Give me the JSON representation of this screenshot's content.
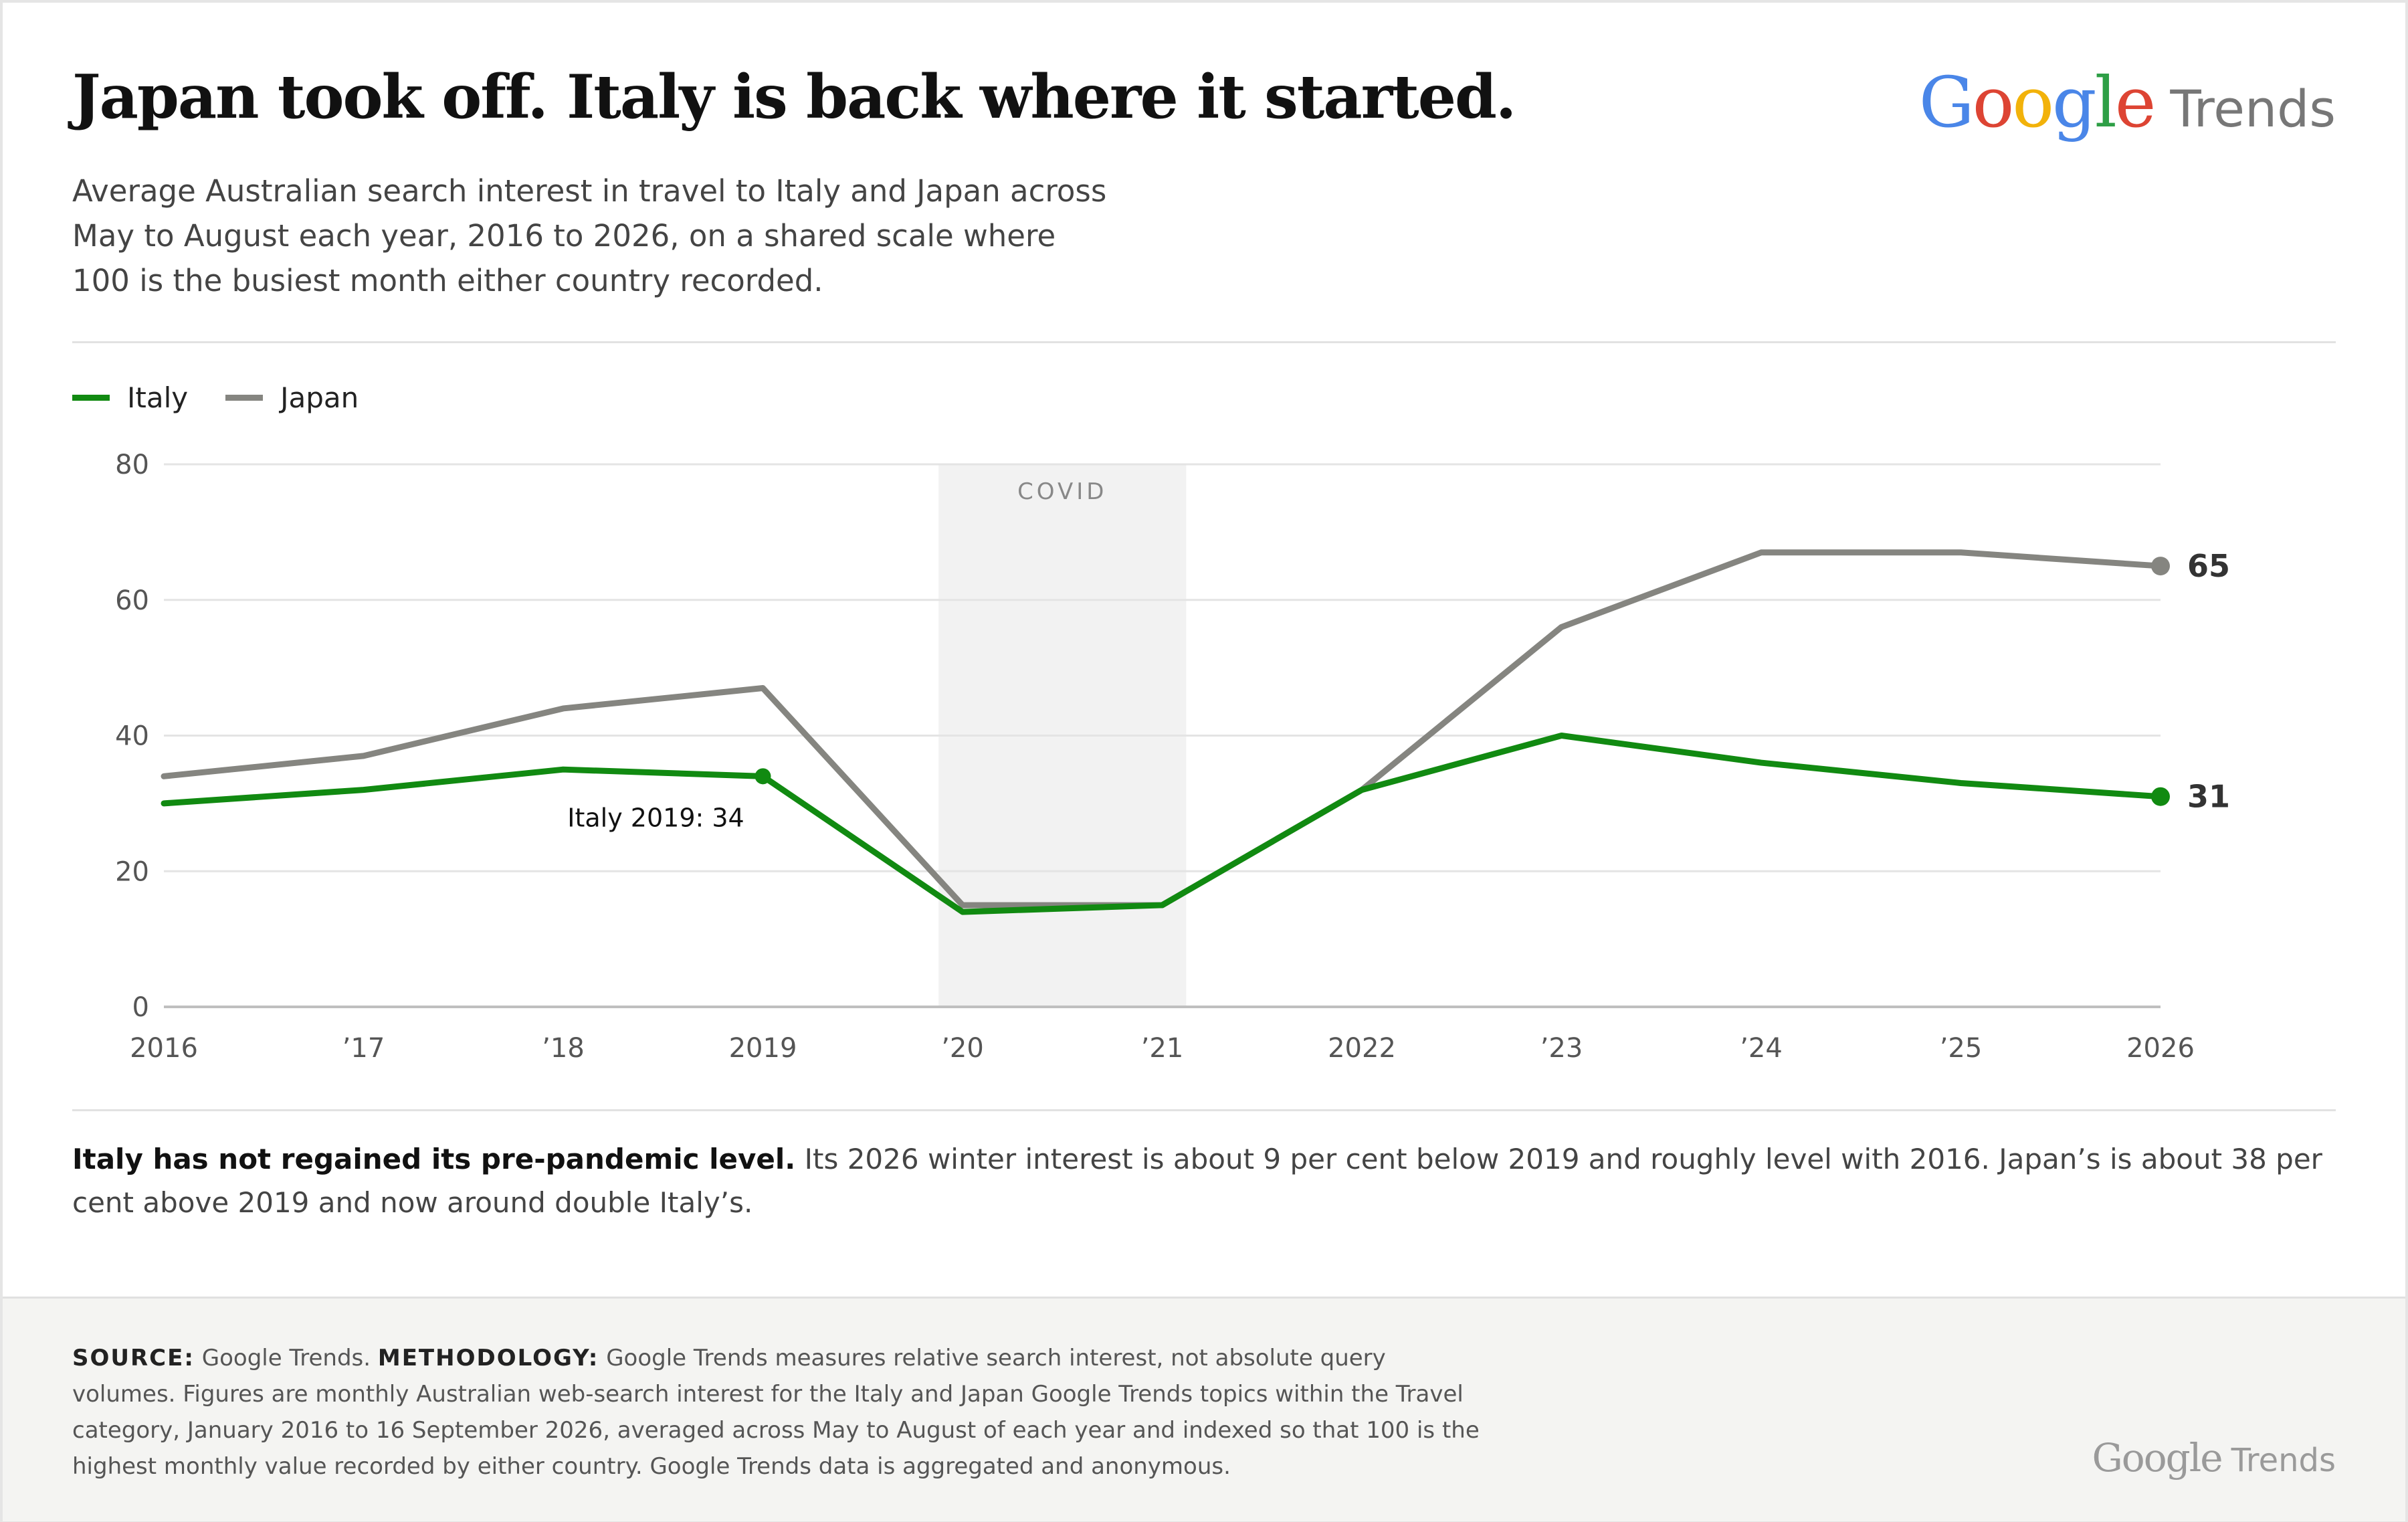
{
  "header": {
    "title": "Japan took off. Italy is back where it started.",
    "subtitle": "Average Australian search interest in travel to Italy and Japan across May to August each year, 2016 to 2026, on a shared scale where 100 is the busiest month either country recorded.",
    "logo_google": "Google",
    "logo_trends": "Trends"
  },
  "legend": [
    {
      "name": "Italy",
      "color": "#118a11"
    },
    {
      "name": "Japan",
      "color": "#858580"
    }
  ],
  "chart_data": {
    "type": "line",
    "x": [
      2016,
      2017,
      2018,
      2019,
      2020,
      2021,
      2022,
      2023,
      2024,
      2025,
      2026
    ],
    "x_tick_labels": [
      "2016",
      "’17",
      "’18",
      "2019",
      "’20",
      "’21",
      "2022",
      "’23",
      "’24",
      "’25",
      "2026"
    ],
    "ylim": [
      0,
      80
    ],
    "y_ticks": [
      0,
      20,
      40,
      60,
      80
    ],
    "grid": true,
    "legend_placement": "top-left",
    "series": [
      {
        "name": "Italy",
        "color": "#118a11",
        "values": [
          30,
          32,
          35,
          34,
          14,
          15,
          32,
          40,
          36,
          33,
          31
        ]
      },
      {
        "name": "Japan",
        "color": "#858580",
        "values": [
          34,
          37,
          44,
          47,
          15,
          15,
          32,
          56,
          67,
          67,
          65
        ]
      }
    ],
    "shaded_region": {
      "label": "COVID",
      "x_start": 2019.88,
      "x_end": 2021.12
    },
    "annotations": [
      {
        "text": "Italy 2019: 34",
        "series": "Italy",
        "x": 2019,
        "y": 34
      }
    ],
    "end_labels": [
      {
        "series": "Japan",
        "text": "65"
      },
      {
        "series": "Italy",
        "text": "31"
      }
    ]
  },
  "takeaway": {
    "bold": "Italy has not regained its pre-pandemic level.",
    "text": " Its 2026 winter interest is about 9 per cent below 2019 and roughly level with 2016. Japan’s is about 38 per cent above 2019 and now around double Italy’s."
  },
  "footer": {
    "source_label": "SOURCE:",
    "source_text": " Google Trends. ",
    "methodology_label": "METHODOLOGY:",
    "methodology_text": " Google Trends measures relative search interest, not absolute query volumes. Figures are monthly Australian web-search interest for the Italy and Japan Google Trends topics within the Travel category, January 2016 to 16 September 2026, averaged across May to August of each year and indexed so that 100 is the highest monthly value recorded by either country. Google Trends data is aggregated and anonymous.",
    "logo_google": "Google",
    "logo_trends": "Trends"
  }
}
